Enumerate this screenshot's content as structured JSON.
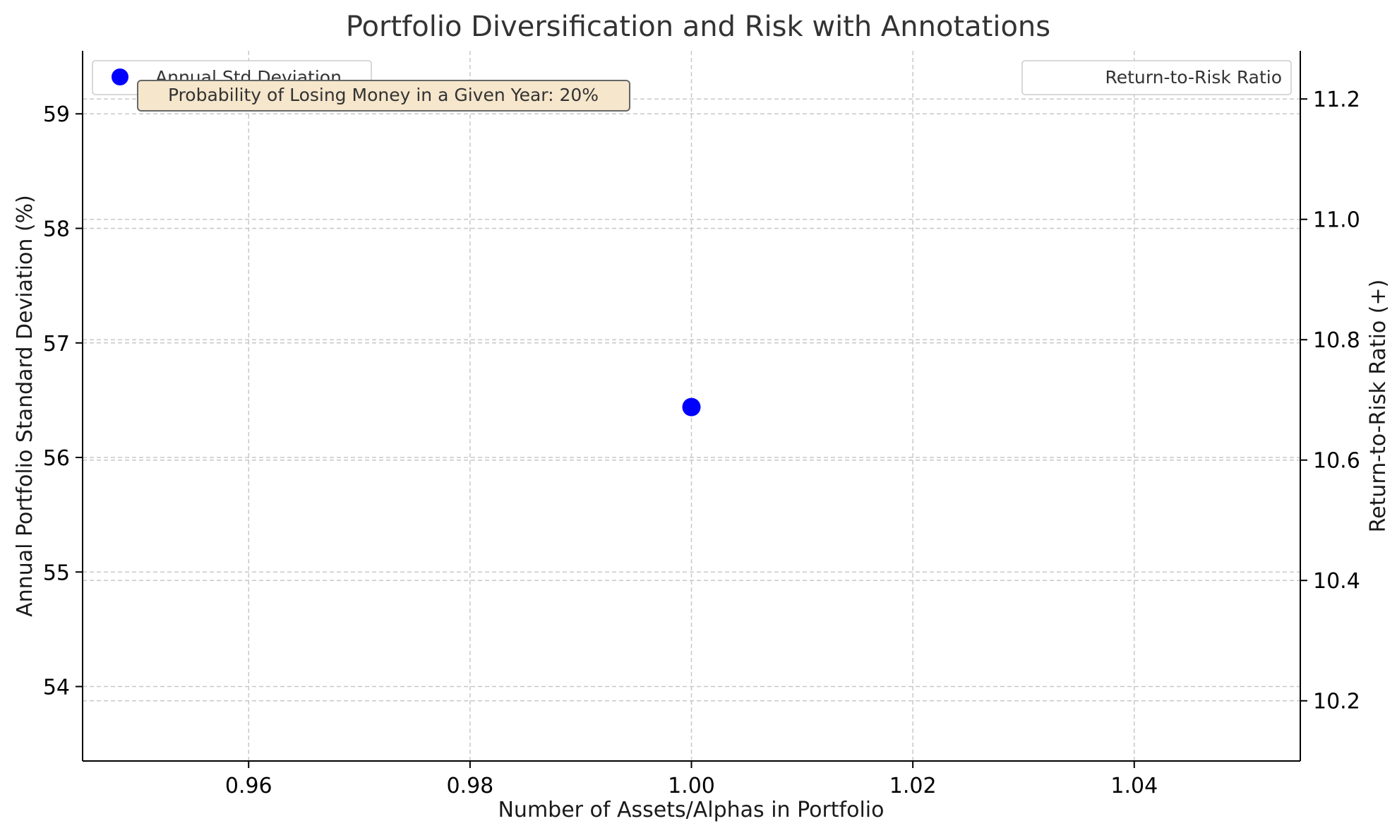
{
  "chart_data": {
    "type": "scatter",
    "title": "Portfolio Diversification and Risk with Annotations",
    "xlabel": "Number of Assets/Alphas in Portfolio",
    "ylabel": "Annual Portfolio Standard Deviation (%)",
    "y2label": "Return-to-Risk Ratio (+)",
    "xlim": [
      0.945,
      1.055
    ],
    "ylim": [
      53.35,
      59.55
    ],
    "y2lim": [
      10.1,
      11.28
    ],
    "x_ticks": [
      "0.96",
      "0.98",
      "1.00",
      "1.02",
      "1.04"
    ],
    "y_ticks": [
      "54",
      "55",
      "56",
      "57",
      "58",
      "59"
    ],
    "y2_ticks": [
      "10.2",
      "10.4",
      "10.6",
      "10.8",
      "11.0",
      "11.2"
    ],
    "grid": true,
    "series": [
      {
        "name": "Annual Std Deviation",
        "axis": "left",
        "color": "#0000ff",
        "marker": "circle",
        "points": [
          {
            "x": 1.0,
            "y": 56.44
          }
        ]
      },
      {
        "name": "Return-to-Risk Ratio",
        "axis": "right",
        "color": "#ff7f0e",
        "marker": "none",
        "points": []
      }
    ],
    "legend_left": {
      "placement": "top-left",
      "label": "Annual Std Deviation"
    },
    "legend_right": {
      "placement": "top-right",
      "label": "Return-to-Risk Ratio"
    },
    "annotation": {
      "text": "Probability of Losing Money in a Given Year: 20%",
      "background": "#f5e6cc"
    }
  }
}
